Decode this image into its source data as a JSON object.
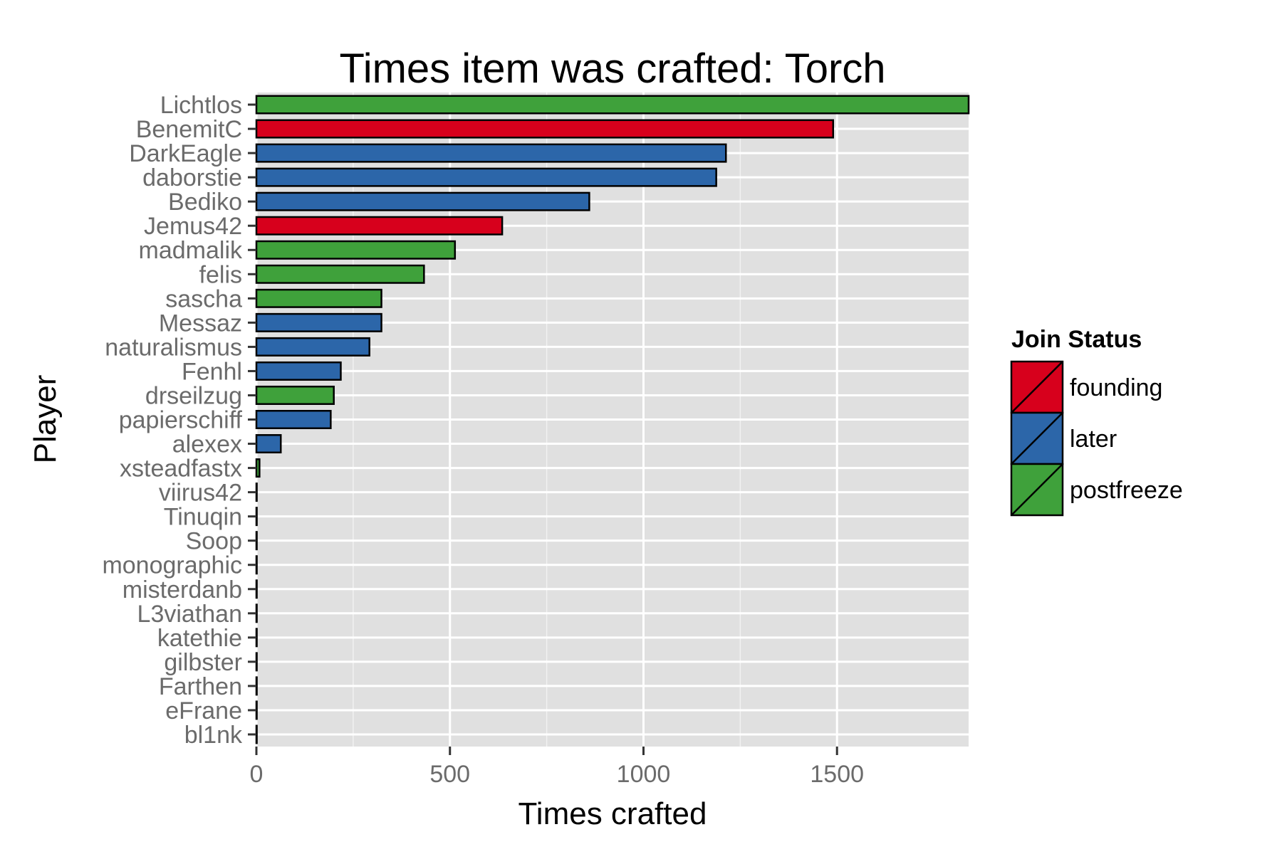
{
  "chart_data": {
    "type": "bar",
    "orientation": "horizontal",
    "title": "Times item was crafted: Torch",
    "xlabel": "Times crafted",
    "ylabel": "Player",
    "xlim": [
      0,
      1840
    ],
    "x_ticks": [
      0,
      500,
      1000,
      1500
    ],
    "x_tick_labels": [
      "0",
      "500",
      "1000",
      "1500"
    ],
    "grid": true,
    "legend": {
      "title": "Join Status",
      "placement": "right",
      "entries": [
        {
          "label": "founding",
          "color": "#d7001c"
        },
        {
          "label": "later",
          "color": "#2c66a9"
        },
        {
          "label": "postfreeze",
          "color": "#3fa13b"
        }
      ]
    },
    "categories": [
      "Lichtlos",
      "BenemitC",
      "DarkEagle",
      "daborstie",
      "Bediko",
      "Jemus42",
      "madmalik",
      "felis",
      "sascha",
      "Messaz",
      "naturalismus",
      "Fenhl",
      "drseilzug",
      "papierschiff",
      "alexex",
      "xsteadfastx",
      "viirus42",
      "Tinuqin",
      "Soop",
      "monographic",
      "misterdanb",
      "L3viathan",
      "katethie",
      "gilbster",
      "Farthen",
      "eFrane",
      "bl1nk"
    ],
    "values": [
      1840,
      1490,
      1213,
      1188,
      860,
      635,
      513,
      433,
      323,
      323,
      292,
      218,
      200,
      192,
      63,
      8,
      1,
      1,
      1,
      1,
      1,
      1,
      1,
      1,
      1,
      1,
      1
    ],
    "groups": [
      "postfreeze",
      "founding",
      "later",
      "later",
      "later",
      "founding",
      "postfreeze",
      "postfreeze",
      "postfreeze",
      "later",
      "later",
      "later",
      "postfreeze",
      "later",
      "later",
      "postfreeze",
      "later",
      "later",
      "later",
      "later",
      "later",
      "later",
      "later",
      "later",
      "later",
      "later",
      "later"
    ]
  }
}
